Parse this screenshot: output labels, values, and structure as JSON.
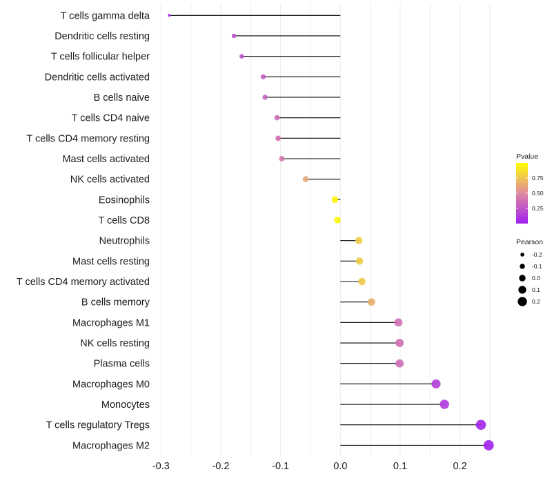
{
  "chart_data": {
    "type": "lollipop",
    "title": "",
    "xlabel": "",
    "ylabel": "",
    "xlim": [
      -0.3,
      0.25
    ],
    "xticks": [
      -0.3,
      -0.2,
      -0.1,
      0.0,
      0.1,
      0.2
    ],
    "xtick_labels": [
      "-0.3",
      "-0.2",
      "-0.1",
      "0.0",
      "0.1",
      "0.2"
    ],
    "grid": true,
    "categories": [
      "T cells gamma delta",
      "Dendritic cells resting",
      "T cells follicular helper",
      "Dendritic cells activated",
      "B cells naive",
      "T cells CD4 naive",
      "T cells CD4 memory resting",
      "Mast cells activated",
      "NK cells activated",
      "Eosinophils",
      "T cells CD8",
      "Neutrophils",
      "Mast cells resting",
      "T cells CD4 memory activated",
      "B cells memory",
      "Macrophages M1",
      "NK cells resting",
      "Plasma cells",
      "Macrophages M0",
      "Monocytes",
      "T cells regulatory  Tregs ",
      "Macrophages M2"
    ],
    "pearson": [
      -0.286,
      -0.178,
      -0.165,
      -0.129,
      -0.126,
      -0.106,
      -0.104,
      -0.098,
      -0.058,
      -0.009,
      -0.005,
      0.031,
      0.032,
      0.036,
      0.052,
      0.097,
      0.099,
      0.099,
      0.16,
      0.174,
      0.235,
      0.248
    ],
    "pvalue": [
      0.0,
      0.2,
      0.22,
      0.28,
      0.3,
      0.36,
      0.37,
      0.4,
      0.62,
      0.95,
      0.97,
      0.78,
      0.78,
      0.76,
      0.65,
      0.38,
      0.37,
      0.37,
      0.15,
      0.12,
      0.03,
      0.02
    ],
    "legends": {
      "color": {
        "title": "Pvalue",
        "range": [
          0.0,
          1.0
        ],
        "ticks": [
          0.25,
          0.5,
          0.75
        ],
        "tick_labels": [
          "0.25",
          "0.50",
          "0.75"
        ],
        "low_color": "#a020f0",
        "mid_color": "#e08aa0",
        "high_color": "#ffff00",
        "placement": "right"
      },
      "size": {
        "title": "Pearson",
        "values": [
          -0.2,
          -0.1,
          0.0,
          0.1,
          0.2
        ],
        "labels": [
          "-0.2",
          "-0.1",
          "0.0",
          "0.1",
          "0.2"
        ],
        "color": "#000000",
        "placement": "right"
      }
    },
    "segment_color": "#000000",
    "gridline_color": "#ebebeb"
  }
}
